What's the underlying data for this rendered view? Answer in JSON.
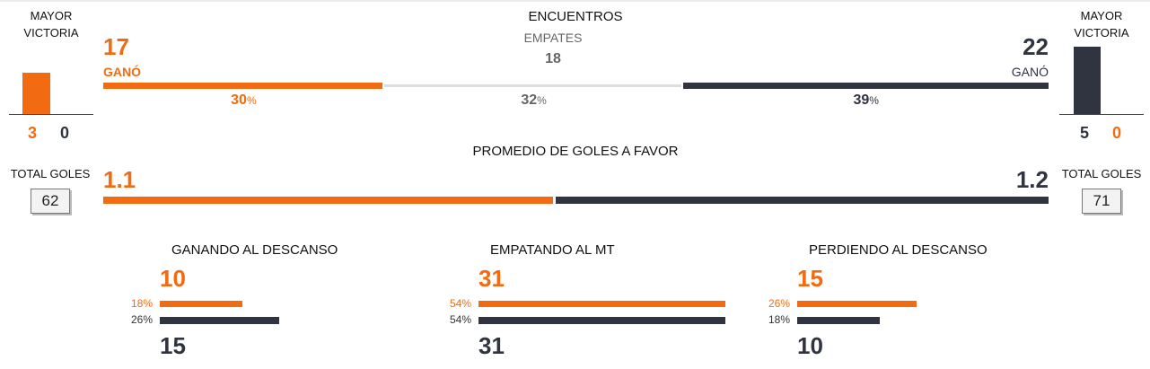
{
  "colors": {
    "home": "#f26b11",
    "away": "#2f3440",
    "neutral": "#dddddd"
  },
  "left": {
    "mayor_victoria_line1": "MAYOR",
    "mayor_victoria_line2": "VICTORIA",
    "score_home": "3",
    "score_away": "0",
    "total_goles_label": "TOTAL GOLES",
    "total_goles": "62"
  },
  "right": {
    "mayor_victoria_line1": "MAYOR",
    "mayor_victoria_line2": "VICTORIA",
    "score_home": "5",
    "score_away": "0",
    "total_goles_label": "TOTAL GOLES",
    "total_goles": "71"
  },
  "encuentros": {
    "title": "ENCUENTROS",
    "home_wins": "17",
    "home_label": "GANÓ",
    "draws_label": "EMPATES",
    "draws": "18",
    "away_wins": "22",
    "away_label": "GANÓ",
    "home_pct": "30",
    "draw_pct": "32",
    "away_pct": "39",
    "pct_sign": "%",
    "home_fraction": 0.3,
    "draw_fraction": 0.32,
    "away_fraction": 0.39
  },
  "promedio": {
    "title": "PROMEDIO DE GOLES A FAVOR",
    "home": "1.1",
    "away": "1.2",
    "home_value": 1.1,
    "away_value": 1.2
  },
  "halftime": [
    {
      "title": "GANANDO AL DESCANSO",
      "home_count": "10",
      "home_pct": "18%",
      "home_fraction": 0.18,
      "away_count": "15",
      "away_pct": "26%",
      "away_fraction": 0.26
    },
    {
      "title": "EMPATANDO AL MT",
      "home_count": "31",
      "home_pct": "54%",
      "home_fraction": 0.54,
      "away_count": "31",
      "away_pct": "54%",
      "away_fraction": 0.54
    },
    {
      "title": "PERDIENDO AL DESCANSO",
      "home_count": "15",
      "home_pct": "26%",
      "home_fraction": 0.26,
      "away_count": "10",
      "away_pct": "18%",
      "away_fraction": 0.18
    }
  ]
}
